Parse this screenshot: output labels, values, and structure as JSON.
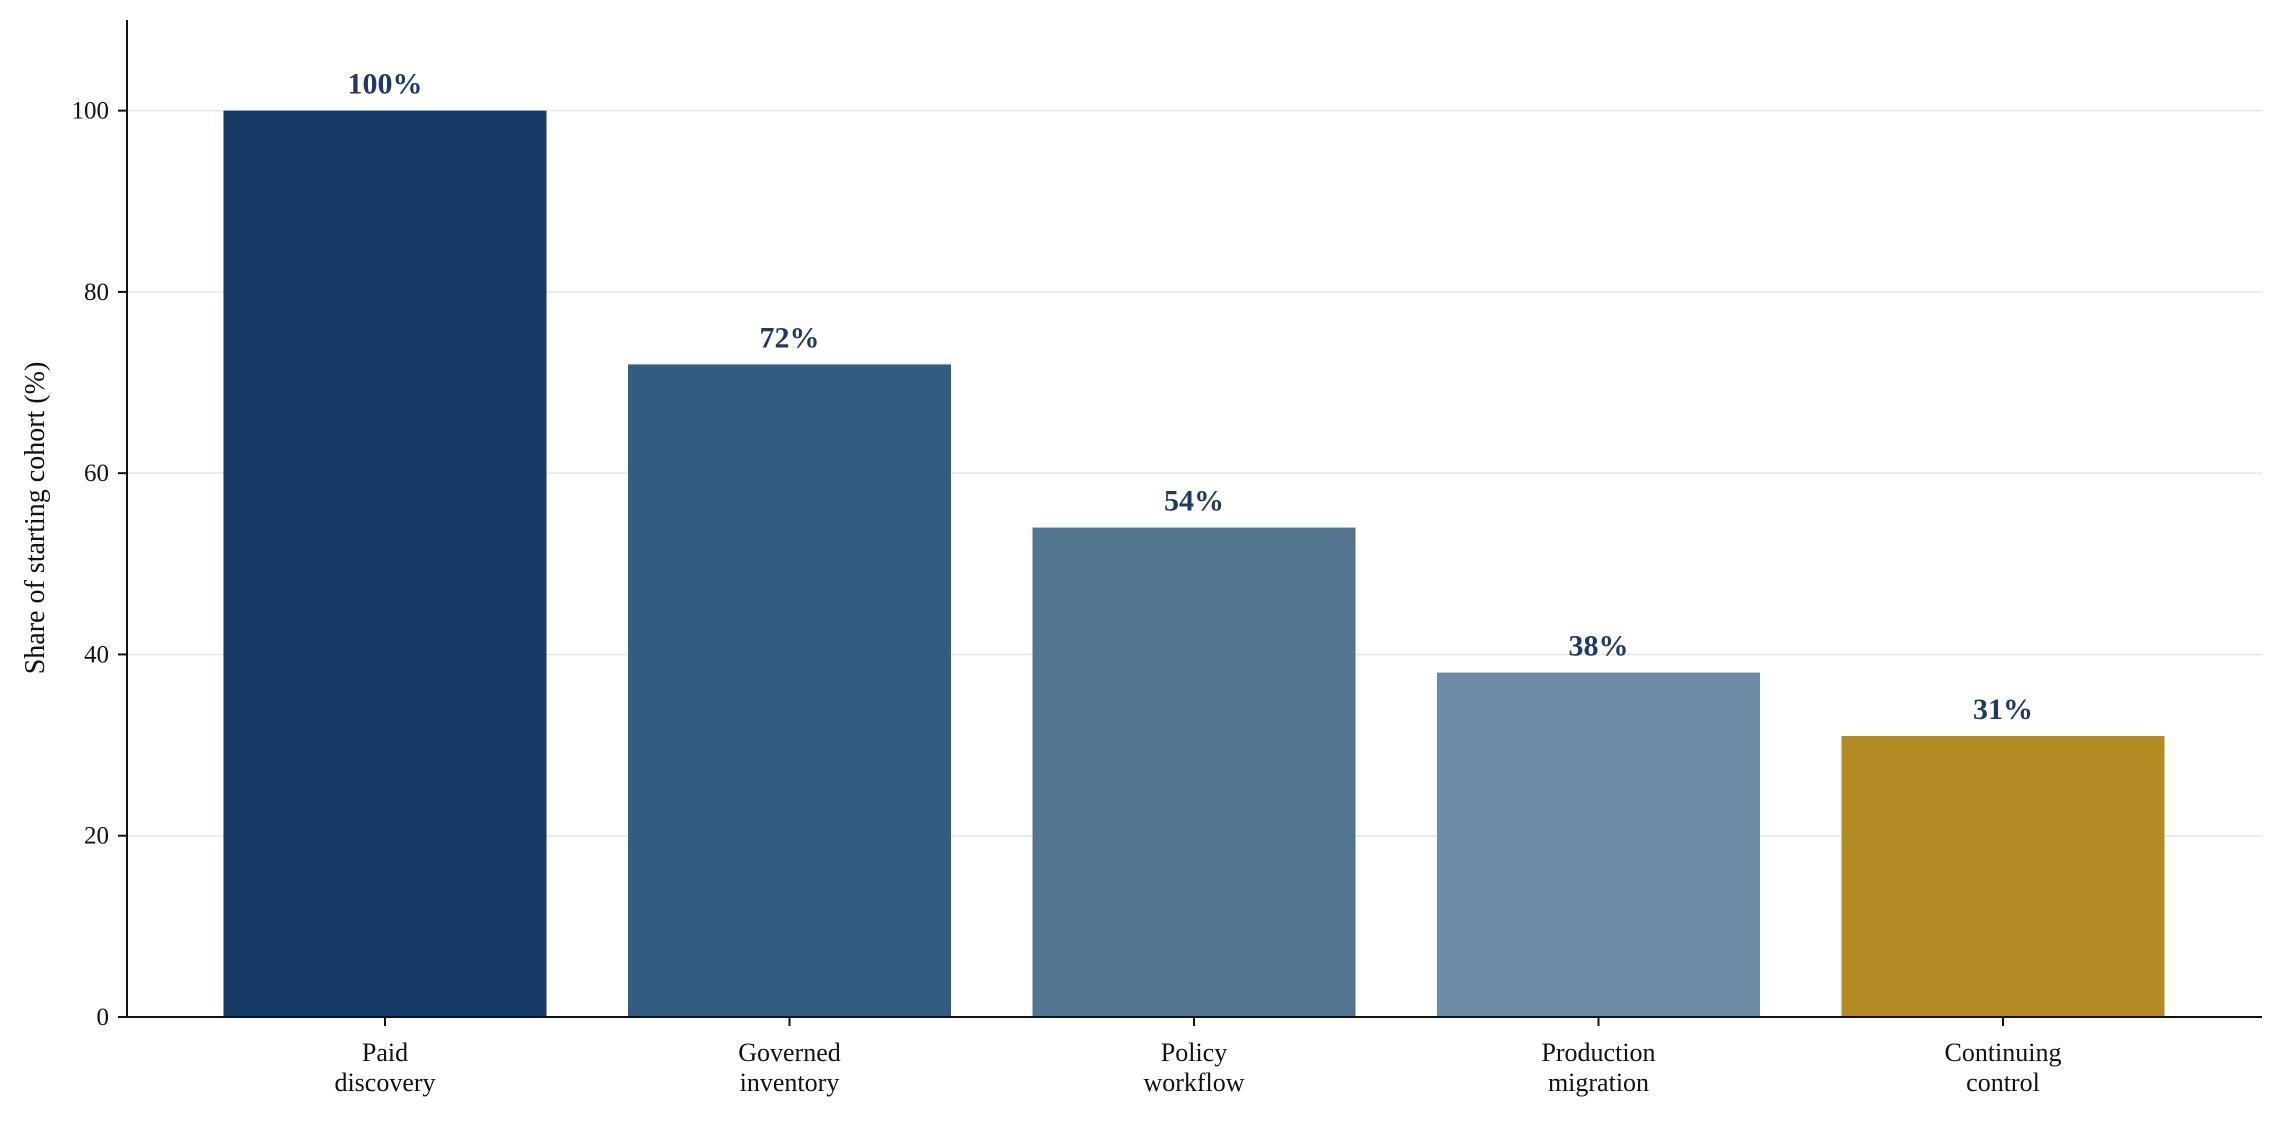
{
  "chart_data": {
    "type": "bar",
    "title": "",
    "xlabel": "",
    "ylabel": "Share of starting cohort (%)",
    "ylim": [
      0,
      110
    ],
    "yticks": [
      0,
      20,
      40,
      60,
      80,
      100
    ],
    "grid": "y",
    "categories": [
      [
        "Paid",
        "discovery"
      ],
      [
        "Governed",
        "inventory"
      ],
      [
        "Policy",
        "workflow"
      ],
      [
        "Production",
        "migration"
      ],
      [
        "Continuing",
        "control"
      ]
    ],
    "values": [
      100,
      72,
      54,
      38,
      31
    ],
    "data_labels": [
      "100%",
      "72%",
      "54%",
      "38%",
      "31%"
    ],
    "colors": [
      "#143a66",
      "#335c82",
      "#52758f",
      "#6c8aa4",
      "#b38b22"
    ]
  }
}
